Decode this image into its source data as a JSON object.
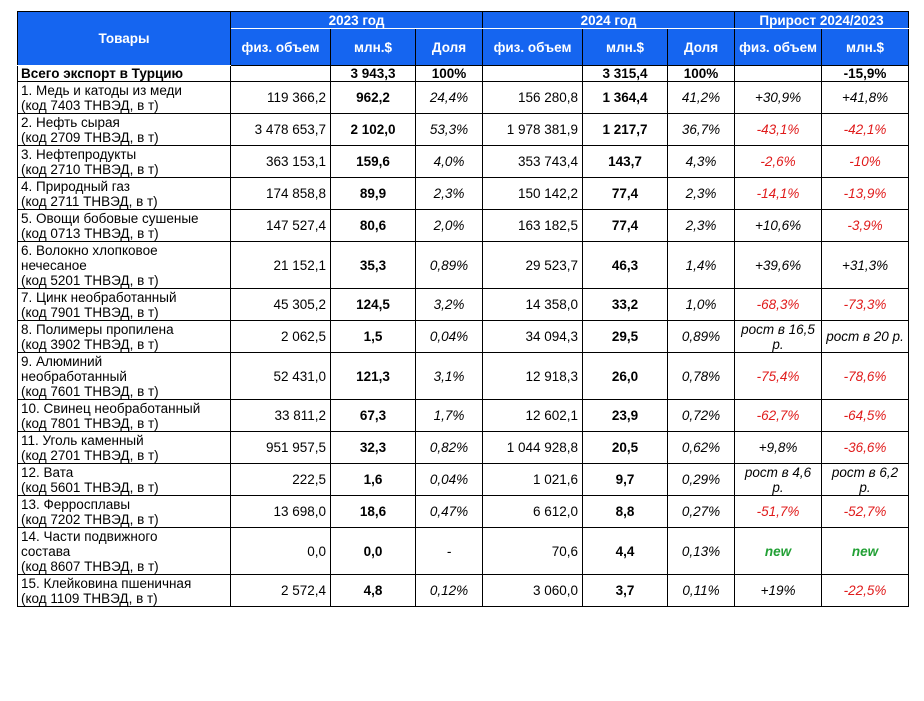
{
  "header": {
    "goods": "Товары",
    "year2023": "2023 год",
    "year2024": "2024 год",
    "growth": "Прирост 2024/2023",
    "phys_volume": "физ. объем",
    "mln_usd": "млн.$",
    "share": "Доля"
  },
  "total": {
    "name": "Всего экспорт в Турцию",
    "v2023": "",
    "usd2023": "3 943,3",
    "share2023": "100%",
    "v2024": "",
    "usd2024": "3 315,4",
    "share2024": "100%",
    "g_vol": "",
    "g_usd": "-15,9%"
  },
  "rows": [
    {
      "name1": "1. Медь и катоды из меди",
      "name2": "(код 7403 ТНВЭД, в т)",
      "v2023": "119 366,2",
      "usd2023": "962,2",
      "share2023": "24,4%",
      "v2024": "156 280,8",
      "usd2024": "1 364,4",
      "share2024": "41,2%",
      "g_vol": "+30,9%",
      "g_usd": "+41,8%",
      "vol_cls": "pos",
      "usd_cls": "pos"
    },
    {
      "name1": "2. Нефть сырая",
      "name2": "(код 2709 ТНВЭД, в т)",
      "v2023": "3 478 653,7",
      "usd2023": "2 102,0",
      "share2023": "53,3%",
      "v2024": "1 978 381,9",
      "usd2024": "1 217,7",
      "share2024": "36,7%",
      "g_vol": "-43,1%",
      "g_usd": "-42,1%",
      "vol_cls": "red",
      "usd_cls": "red"
    },
    {
      "name1": "3. Нефтепродукты",
      "name2": "(код 2710 ТНВЭД, в т)",
      "v2023": "363 153,1",
      "usd2023": "159,6",
      "share2023": "4,0%",
      "v2024": "353 743,4",
      "usd2024": "143,7",
      "share2024": "4,3%",
      "g_vol": "-2,6%",
      "g_usd": "-10%",
      "vol_cls": "red",
      "usd_cls": "red"
    },
    {
      "name1": "4. Природный газ",
      "name2": "(код 2711 ТНВЭД, в т)",
      "v2023": "174 858,8",
      "usd2023": "89,9",
      "share2023": "2,3%",
      "v2024": "150 142,2",
      "usd2024": "77,4",
      "share2024": "2,3%",
      "g_vol": "-14,1%",
      "g_usd": "-13,9%",
      "vol_cls": "red",
      "usd_cls": "red"
    },
    {
      "name1": "5. Овощи бобовые сушеные",
      "name2": "(код 0713 ТНВЭД, в т)",
      "v2023": "147 527,4",
      "usd2023": "80,6",
      "share2023": "2,0%",
      "v2024": "163 182,5",
      "usd2024": "77,4",
      "share2024": "2,3%",
      "g_vol": "+10,6%",
      "g_usd": "-3,9%",
      "vol_cls": "pos",
      "usd_cls": "red"
    },
    {
      "name1": "6. Волокно хлопковое",
      "name2": "нечесаное",
      "name3": "(код 5201 ТНВЭД, в т)",
      "v2023": "21 152,1",
      "usd2023": "35,3",
      "share2023": "0,89%",
      "v2024": "29 523,7",
      "usd2024": "46,3",
      "share2024": "1,4%",
      "g_vol": "+39,6%",
      "g_usd": "+31,3%",
      "vol_cls": "pos",
      "usd_cls": "pos"
    },
    {
      "name1": "7. Цинк необработанный",
      "name2": "(код 7901 ТНВЭД, в т)",
      "v2023": "45 305,2",
      "usd2023": "124,5",
      "share2023": "3,2%",
      "v2024": "14 358,0",
      "usd2024": "33,2",
      "share2024": "1,0%",
      "g_vol": "-68,3%",
      "g_usd": "-73,3%",
      "vol_cls": "red",
      "usd_cls": "red"
    },
    {
      "name1": "8. Полимеры пропилена",
      "name2": "(код 3902 ТНВЭД, в т)",
      "v2023": "2 062,5",
      "usd2023": "1,5",
      "share2023": "0,04%",
      "v2024": "34 094,3",
      "usd2024": "29,5",
      "share2024": "0,89%",
      "g_vol": "рост в 16,5 р.",
      "g_usd": "рост в 20 р.",
      "vol_cls": "pos",
      "usd_cls": "pos"
    },
    {
      "name1": "9. Алюминий",
      "name2": "необработанный",
      "name3": "(код 7601 ТНВЭД, в т)",
      "v2023": "52 431,0",
      "usd2023": "121,3",
      "share2023": "3,1%",
      "v2024": "12 918,3",
      "usd2024": "26,0",
      "share2024": "0,78%",
      "g_vol": "-75,4%",
      "g_usd": "-78,6%",
      "vol_cls": "red",
      "usd_cls": "red"
    },
    {
      "name1": "10. Свинец необработанный",
      "name2": "(код 7801 ТНВЭД, в т)",
      "v2023": "33 811,2",
      "usd2023": "67,3",
      "share2023": "1,7%",
      "v2024": "12 602,1",
      "usd2024": "23,9",
      "share2024": "0,72%",
      "g_vol": "-62,7%",
      "g_usd": "-64,5%",
      "vol_cls": "red",
      "usd_cls": "red"
    },
    {
      "name1": "11. Уголь каменный",
      "name2": "(код 2701 ТНВЭД, в т)",
      "v2023": "951 957,5",
      "usd2023": "32,3",
      "share2023": "0,82%",
      "v2024": "1 044 928,8",
      "usd2024": "20,5",
      "share2024": "0,62%",
      "g_vol": "+9,8%",
      "g_usd": "-36,6%",
      "vol_cls": "pos",
      "usd_cls": "red"
    },
    {
      "name1": "12. Вата",
      "name2": "(код 5601 ТНВЭД, в т)",
      "v2023": "222,5",
      "usd2023": "1,6",
      "share2023": "0,04%",
      "v2024": "1 021,6",
      "usd2024": "9,7",
      "share2024": "0,29%",
      "g_vol": "рост в 4,6 р.",
      "g_usd": "рост в 6,2 р.",
      "vol_cls": "pos",
      "usd_cls": "pos"
    },
    {
      "name1": "13. Ферросплавы",
      "name2": "(код 7202 ТНВЭД, в т)",
      "v2023": "13 698,0",
      "usd2023": "18,6",
      "share2023": "0,47%",
      "v2024": "6 612,0",
      "usd2024": "8,8",
      "share2024": "0,27%",
      "g_vol": "-51,7%",
      "g_usd": "-52,7%",
      "vol_cls": "red",
      "usd_cls": "red"
    },
    {
      "name1": "14. Части подвижного",
      "name2": "состава",
      "name3": "(код 8607 ТНВЭД, в т)",
      "v2023": "0,0",
      "usd2023": "0,0",
      "share2023": "-",
      "v2024": "70,6",
      "usd2024": "4,4",
      "share2024": "0,13%",
      "g_vol": "new",
      "g_usd": "new",
      "vol_cls": "new",
      "usd_cls": "new"
    },
    {
      "name1": "15. Клейковина пшеничная",
      "name2": "(код 1109 ТНВЭД, в т)",
      "v2023": "2 572,4",
      "usd2023": "4,8",
      "share2023": "0,12%",
      "v2024": "3 060,0",
      "usd2024": "3,7",
      "share2024": "0,11%",
      "g_vol": "+19%",
      "g_usd": "-22,5%",
      "vol_cls": "pos",
      "usd_cls": "red"
    }
  ]
}
